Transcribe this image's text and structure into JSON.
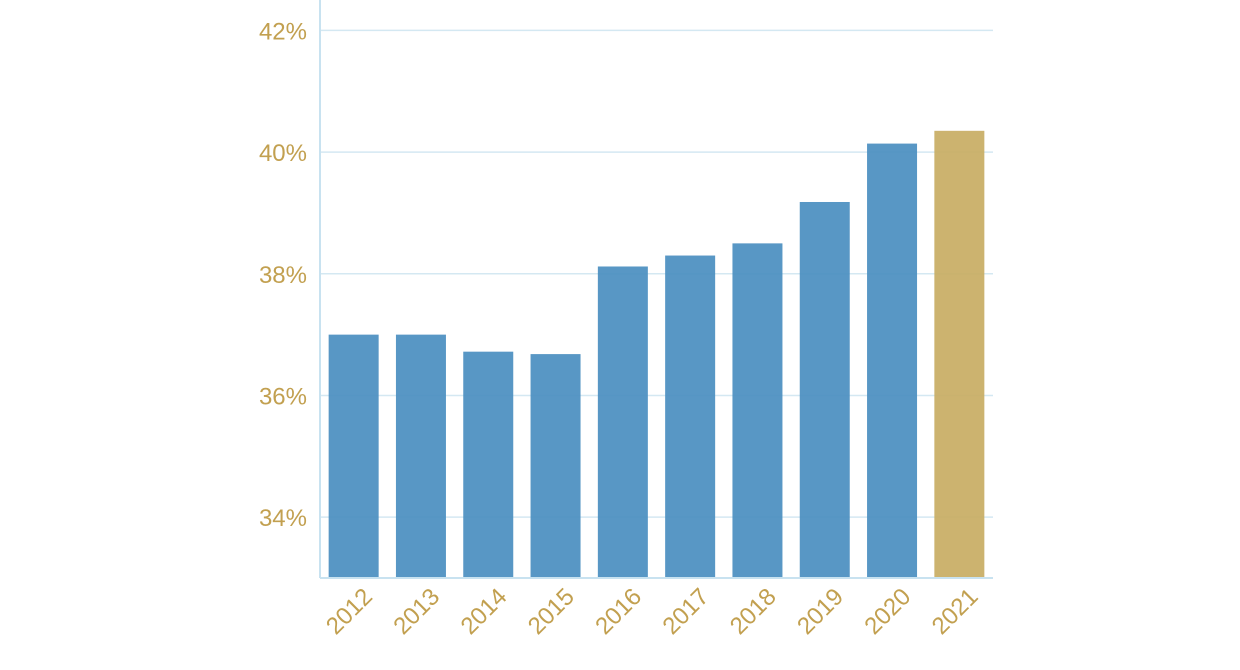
{
  "chart_data": {
    "type": "bar",
    "title": "",
    "xlabel": "",
    "ylabel": "",
    "categories": [
      "2012",
      "2013",
      "2014",
      "2015",
      "2016",
      "2017",
      "2018",
      "2019",
      "2020",
      "2021"
    ],
    "values": [
      37.0,
      37.0,
      36.72,
      36.68,
      38.12,
      38.3,
      38.5,
      39.18,
      40.14,
      40.35
    ],
    "unit": "%",
    "ylim": [
      33.0,
      42.5
    ],
    "yticks": [
      34,
      36,
      38,
      40,
      42
    ],
    "ytick_labels": [
      "34%",
      "36%",
      "38%",
      "40%",
      "42%"
    ],
    "highlight_index": 9,
    "grid": "horizontal",
    "legend": "none",
    "colors": {
      "bar": "#4a8ec0",
      "highlight_bar": "#c8ad63",
      "label": "#c2a050",
      "grid": "#d4e8f2",
      "axis": "#c8e2f0"
    }
  }
}
